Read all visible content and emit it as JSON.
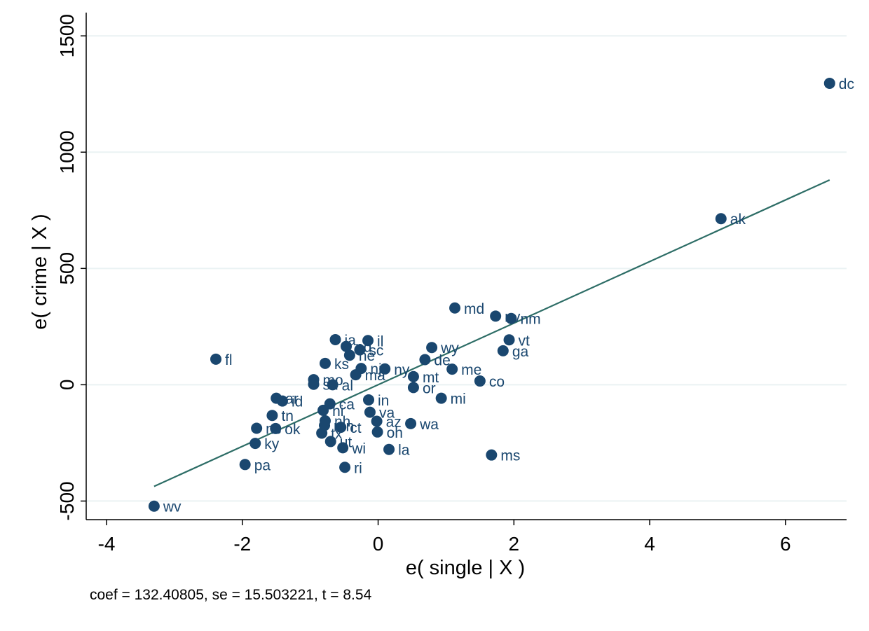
{
  "chart_data": {
    "type": "scatter",
    "xlabel": "e( single | X )",
    "ylabel": "e( crime | X )",
    "xlim": [
      -4.3,
      6.9
    ],
    "ylim": [
      -580,
      1600
    ],
    "xticks": [
      -4,
      -2,
      0,
      2,
      4,
      6
    ],
    "yticks": [
      -500,
      0,
      500,
      1000,
      1500
    ],
    "grid": true,
    "note": "coef = 132.40805, se = 15.503221, t = 8.54",
    "fit_line": {
      "coef": 132.40805,
      "x_range": [
        -3.3,
        6.65
      ]
    },
    "colors": {
      "marker": "#1a476f",
      "line": "#2d6d66",
      "grid": "#eaf2f3"
    },
    "points": [
      {
        "label": "dc",
        "x": 6.65,
        "y": 1296
      },
      {
        "label": "ak",
        "x": 5.05,
        "y": 714
      },
      {
        "label": "md",
        "x": 1.13,
        "y": 330
      },
      {
        "label": "nv",
        "x": 1.73,
        "y": 295
      },
      {
        "label": "nm",
        "x": 1.96,
        "y": 285
      },
      {
        "label": "vt",
        "x": 1.93,
        "y": 193
      },
      {
        "label": "ga",
        "x": 1.84,
        "y": 146
      },
      {
        "label": "wy",
        "x": 0.79,
        "y": 160
      },
      {
        "label": "de",
        "x": 0.69,
        "y": 108
      },
      {
        "label": "me",
        "x": 1.09,
        "y": 67
      },
      {
        "label": "co",
        "x": 1.5,
        "y": 16
      },
      {
        "label": "mi",
        "x": 0.93,
        "y": -58
      },
      {
        "label": "ms",
        "x": 1.67,
        "y": -302
      },
      {
        "label": "fl",
        "x": -2.39,
        "y": 110
      },
      {
        "label": "ia",
        "x": -0.63,
        "y": 194
      },
      {
        "label": "il",
        "x": -0.15,
        "y": 190
      },
      {
        "label": "ks",
        "x": -0.78,
        "y": 92
      },
      {
        "label": "sc",
        "x": -0.27,
        "y": 150
      },
      {
        "label": "ne",
        "x": -0.42,
        "y": 127
      },
      {
        "label": "nd",
        "x": -0.47,
        "y": 165
      },
      {
        "label": "nj",
        "x": -0.25,
        "y": 70
      },
      {
        "label": "ma",
        "x": -0.33,
        "y": 43
      },
      {
        "label": "ny",
        "x": 0.1,
        "y": 68
      },
      {
        "label": "mt",
        "x": 0.52,
        "y": 35
      },
      {
        "label": "or",
        "x": 0.52,
        "y": -12
      },
      {
        "label": "mo",
        "x": -0.95,
        "y": 22
      },
      {
        "label": "sd",
        "x": -0.95,
        "y": 2
      },
      {
        "label": "al",
        "x": -0.67,
        "y": 0
      },
      {
        "label": "ar",
        "x": -1.5,
        "y": -58
      },
      {
        "label": "id",
        "x": -1.41,
        "y": -70
      },
      {
        "label": "ca",
        "x": -0.71,
        "y": -82
      },
      {
        "label": "hi",
        "x": -0.81,
        "y": -110
      },
      {
        "label": "in",
        "x": -0.14,
        "y": -65
      },
      {
        "label": "va",
        "x": -0.12,
        "y": -118
      },
      {
        "label": "az",
        "x": -0.02,
        "y": -157
      },
      {
        "label": "oh",
        "x": -0.01,
        "y": -203
      },
      {
        "label": "wa",
        "x": 0.48,
        "y": -167
      },
      {
        "label": "la",
        "x": 0.16,
        "y": -278
      },
      {
        "label": "tn",
        "x": -1.56,
        "y": -132
      },
      {
        "label": "nc",
        "x": -1.79,
        "y": -187
      },
      {
        "label": "ok",
        "x": -1.51,
        "y": -188
      },
      {
        "label": "ky",
        "x": -1.81,
        "y": -252
      },
      {
        "label": "pa",
        "x": -1.96,
        "y": -343
      },
      {
        "label": "nh",
        "x": -0.78,
        "y": -155
      },
      {
        "label": "mn",
        "x": -0.79,
        "y": -175
      },
      {
        "label": "ct",
        "x": -0.55,
        "y": -183
      },
      {
        "label": "tx",
        "x": -0.83,
        "y": -208
      },
      {
        "label": "ut",
        "x": -0.7,
        "y": -244
      },
      {
        "label": "wi",
        "x": -0.52,
        "y": -271
      },
      {
        "label": "ri",
        "x": -0.49,
        "y": -355
      },
      {
        "label": "wv",
        "x": -3.3,
        "y": -522
      }
    ]
  }
}
